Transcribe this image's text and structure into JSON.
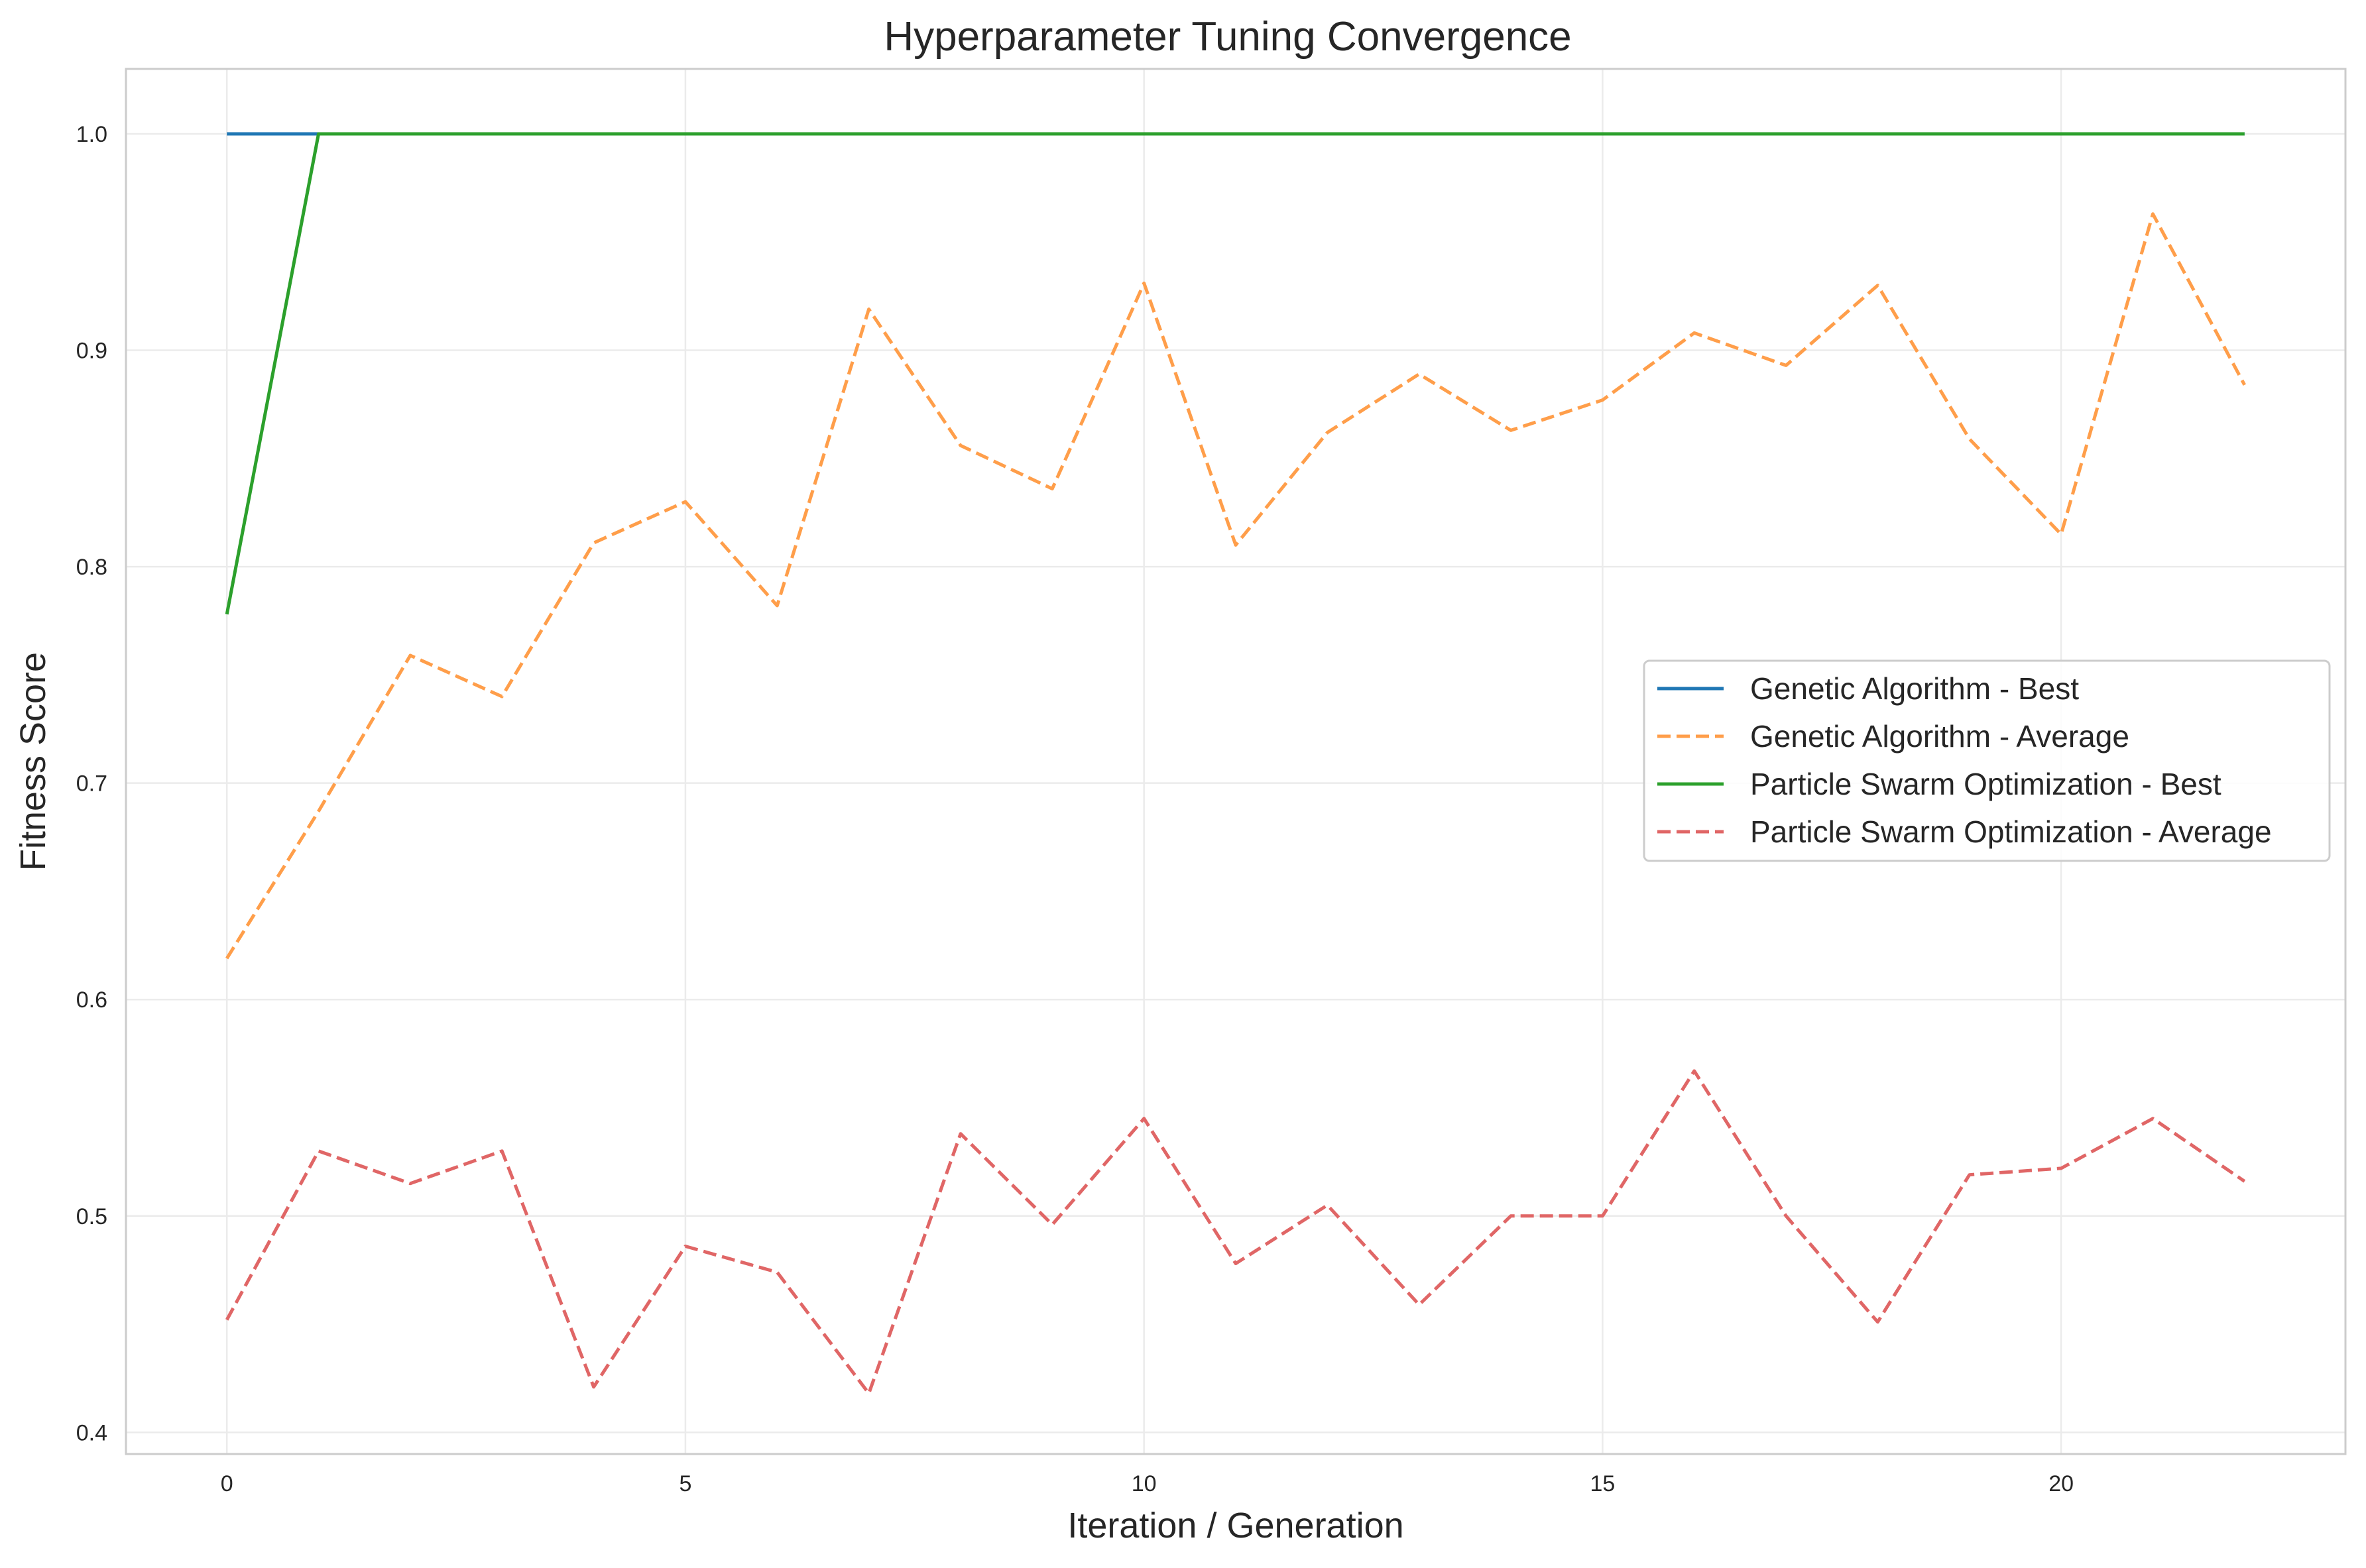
{
  "chart_data": {
    "type": "line",
    "title": "Hyperparameter Tuning Convergence",
    "xlabel": "Iteration / Generation",
    "ylabel": "Fitness Score",
    "xlim": [
      -1.1,
      23.1
    ],
    "ylim": [
      0.39,
      1.03
    ],
    "x_ticks": [
      0,
      5,
      10,
      15,
      20
    ],
    "y_ticks": [
      0.4,
      0.5,
      0.6,
      0.7,
      0.8,
      0.9,
      1.0
    ],
    "grid": true,
    "legend_position": "center-right",
    "x": [
      0,
      1,
      2,
      3,
      4,
      5,
      6,
      7,
      8,
      9,
      10,
      11,
      12,
      13,
      14,
      15,
      16,
      17,
      18,
      19,
      20,
      21,
      22
    ],
    "series": [
      {
        "name": "Genetic Algorithm - Best",
        "color": "#1f77b4",
        "style": "solid",
        "values": [
          1.0,
          1.0,
          1.0,
          1.0,
          1.0,
          1.0,
          1.0,
          1.0,
          1.0,
          1.0,
          1.0,
          1.0,
          1.0,
          1.0,
          1.0,
          1.0,
          1.0,
          1.0,
          1.0,
          1.0,
          1.0,
          1.0,
          1.0
        ]
      },
      {
        "name": "Genetic Algorithm - Average",
        "color": "#ff9e4a",
        "style": "dashed",
        "values": [
          0.619,
          0.687,
          0.759,
          0.74,
          0.811,
          0.83,
          0.782,
          0.919,
          0.856,
          0.836,
          0.931,
          0.81,
          0.862,
          0.889,
          0.863,
          0.877,
          0.908,
          0.893,
          0.93,
          0.859,
          0.815,
          0.963,
          0.884
        ]
      },
      {
        "name": "Particle Swarm Optimization - Best",
        "color": "#2ca02c",
        "style": "solid",
        "values": [
          0.778,
          1.0,
          1.0,
          1.0,
          1.0,
          1.0,
          1.0,
          1.0,
          1.0,
          1.0,
          1.0,
          1.0,
          1.0,
          1.0,
          1.0,
          1.0,
          1.0,
          1.0,
          1.0,
          1.0,
          1.0,
          1.0,
          1.0
        ]
      },
      {
        "name": "Particle Swarm Optimization - Average",
        "color": "#e06666",
        "style": "dashed",
        "values": [
          0.452,
          0.53,
          0.515,
          0.53,
          0.421,
          0.486,
          0.474,
          0.418,
          0.538,
          0.496,
          0.545,
          0.478,
          0.505,
          0.459,
          0.5,
          0.5,
          0.567,
          0.5,
          0.451,
          0.519,
          0.522,
          0.545,
          0.516
        ]
      }
    ]
  }
}
